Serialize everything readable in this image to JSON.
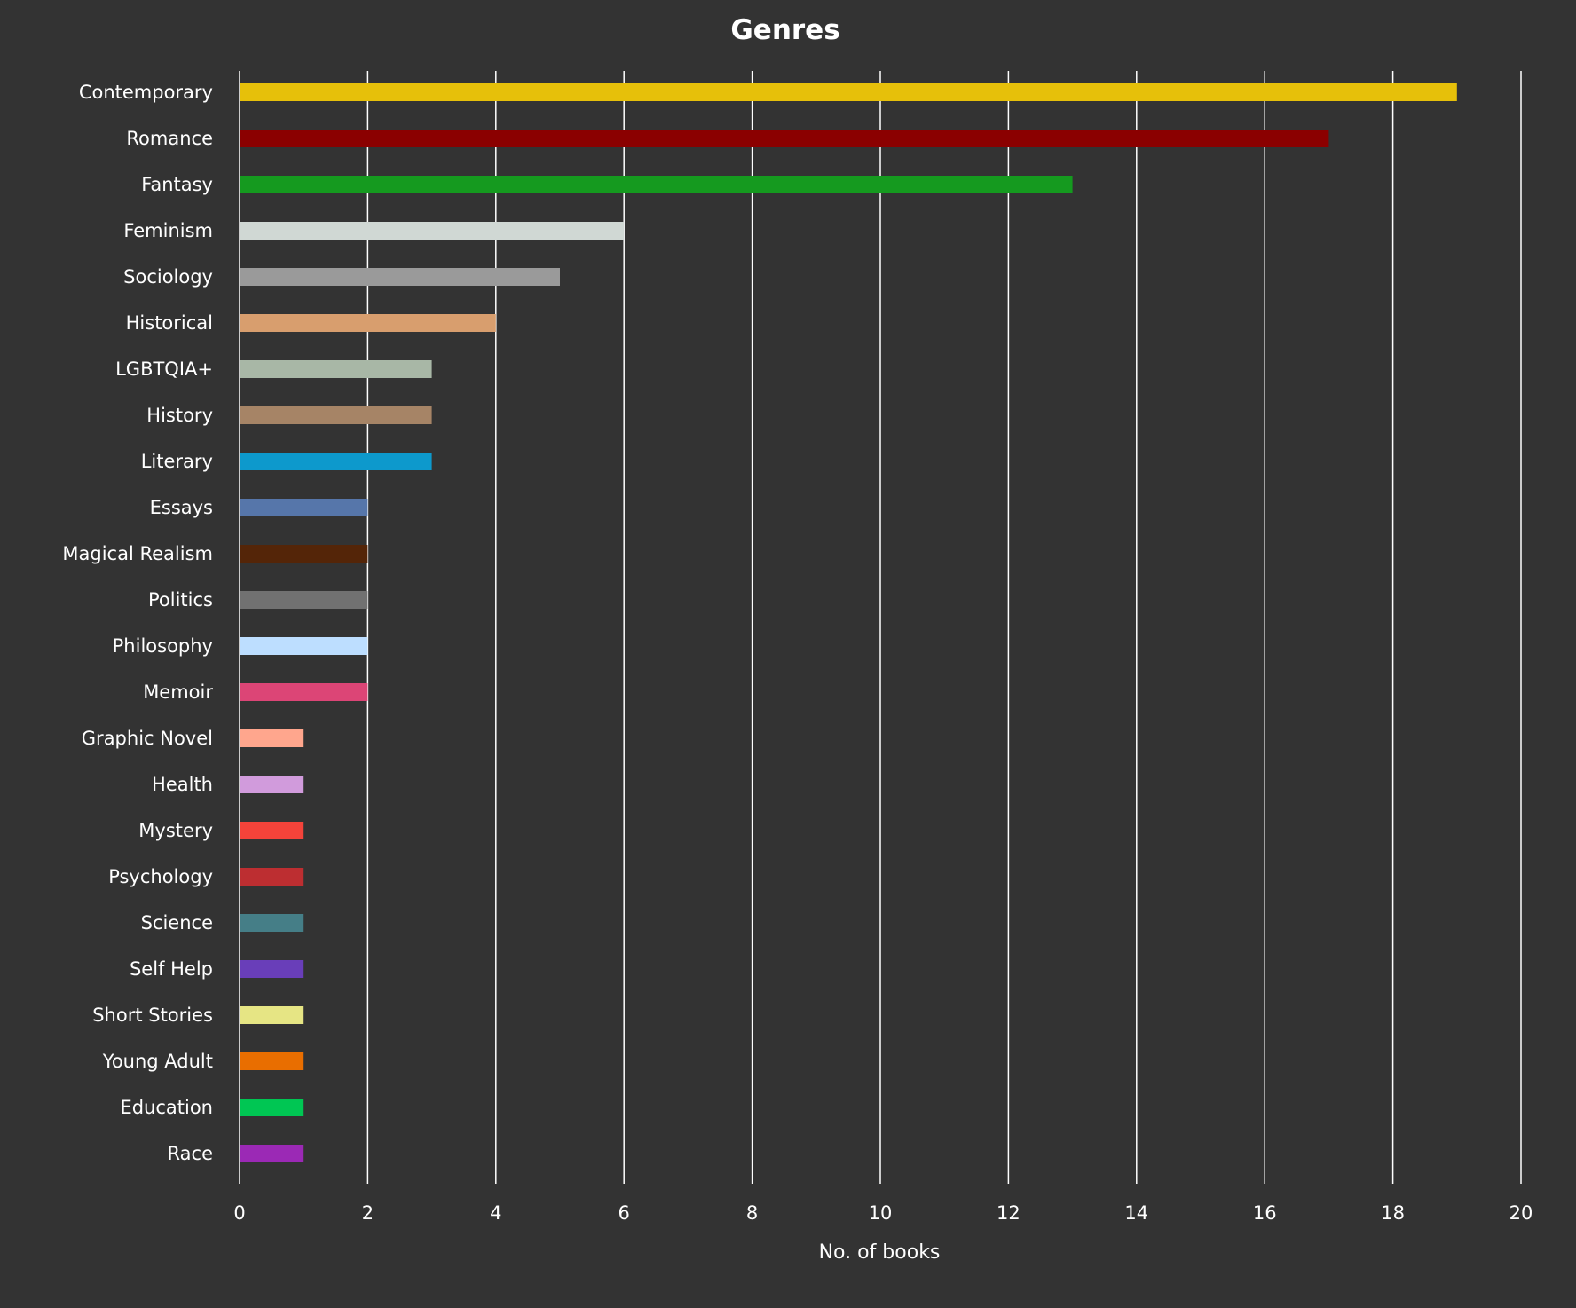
{
  "chart_data": {
    "type": "bar",
    "orientation": "horizontal",
    "title": "Genres",
    "xlabel": "No. of books",
    "ylabel": "",
    "xlim": [
      0,
      20
    ],
    "xticks": [
      0,
      2,
      4,
      6,
      8,
      10,
      12,
      14,
      16,
      18,
      20
    ],
    "grid": true,
    "background": "#333333",
    "categories": [
      "Contemporary",
      "Romance",
      "Fantasy",
      "Feminism",
      "Sociology",
      "Historical",
      "LGBTQIA+",
      "History",
      "Literary",
      "Essays",
      "Magical Realism",
      "Politics",
      "Philosophy",
      "Memoir",
      "Graphic Novel",
      "Health",
      "Mystery",
      "Psychology",
      "Science",
      "Self Help",
      "Short Stories",
      "Young Adult",
      "Education",
      "Race"
    ],
    "values": [
      19,
      17,
      13,
      6,
      5,
      4,
      3,
      3,
      3,
      2,
      2,
      2,
      2,
      2,
      1,
      1,
      1,
      1,
      1,
      1,
      1,
      1,
      1,
      1
    ],
    "colors": [
      "#e6c00a",
      "#8b0000",
      "#159a1f",
      "#d0d8d4",
      "#9a9a9a",
      "#d89e6e",
      "#a8b7a6",
      "#a68466",
      "#0d99cc",
      "#5676aa",
      "#542508",
      "#717171",
      "#bddeff",
      "#dc4576",
      "#ffa68d",
      "#d19bdc",
      "#f4433a",
      "#bd2e31",
      "#457e87",
      "#693eb9",
      "#e6e584",
      "#e96e00",
      "#00c653",
      "#9b29b5"
    ]
  }
}
